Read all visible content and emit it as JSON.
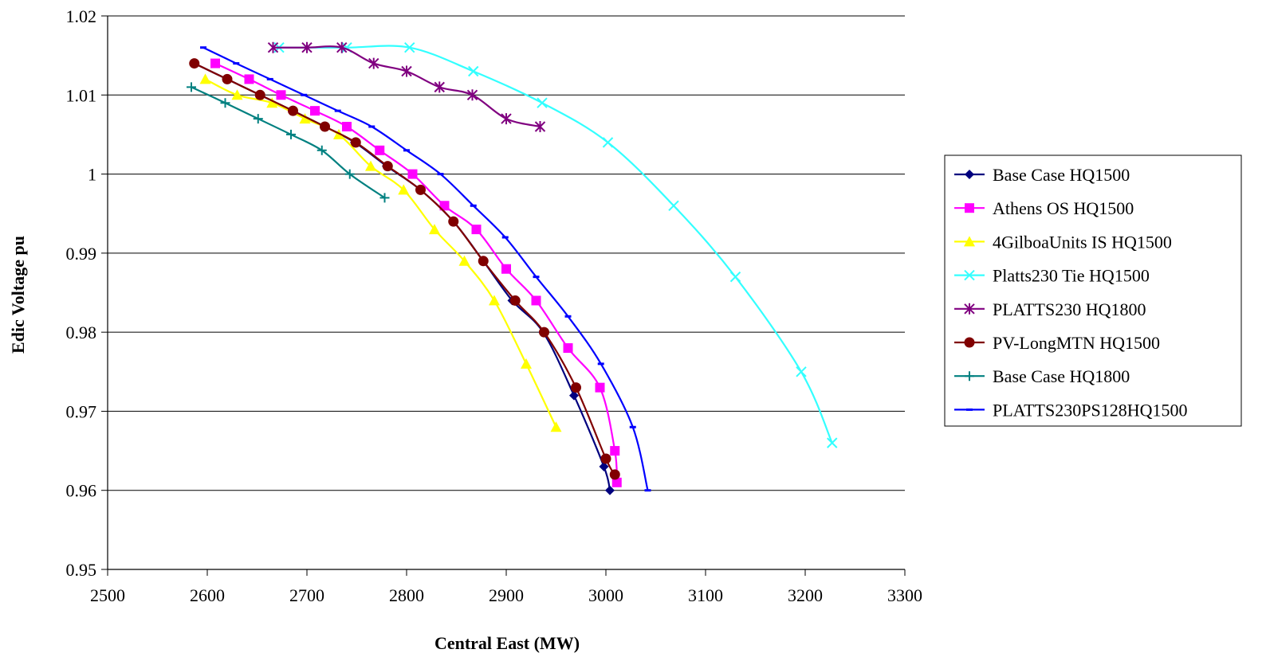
{
  "chart_data": {
    "type": "line",
    "title": "",
    "xlabel": "Central East (MW)",
    "ylabel": "Edic Voltage pu",
    "xlim": [
      2500,
      3300
    ],
    "ylim": [
      0.95,
      1.02
    ],
    "xticks": [
      "2500",
      "2600",
      "2700",
      "2800",
      "2900",
      "3000",
      "3100",
      "3200",
      "3300"
    ],
    "yticks": [
      "0.95",
      "0.96",
      "0.97",
      "0.98",
      "0.99",
      "1",
      "1.01",
      "1.02"
    ],
    "grid": "horizontal",
    "legend_position": "right",
    "series": [
      {
        "name": "Base Case HQ1500",
        "color": "#00007f",
        "marker": "diamond",
        "x": [
          2587,
          2620,
          2653,
          2686,
          2718,
          2748,
          2780,
          2814,
          2847,
          2877,
          2906,
          2937,
          2968,
          2998,
          3004
        ],
        "y": [
          1.014,
          1.012,
          1.01,
          1.008,
          1.006,
          1.004,
          1.001,
          0.998,
          0.994,
          0.989,
          0.984,
          0.98,
          0.972,
          0.963,
          0.96
        ]
      },
      {
        "name": "Athens OS HQ1500",
        "color": "#ff00ff",
        "marker": "square",
        "x": [
          2608,
          2642,
          2674,
          2708,
          2740,
          2773,
          2806,
          2838,
          2870,
          2900,
          2930,
          2962,
          2994,
          3009,
          3011
        ],
        "y": [
          1.014,
          1.012,
          1.01,
          1.008,
          1.006,
          1.003,
          1.0,
          0.996,
          0.993,
          0.988,
          0.984,
          0.978,
          0.973,
          0.965,
          0.961
        ]
      },
      {
        "name": "4GilboaUnits IS HQ1500",
        "color": "#ffff00",
        "marker": "triangle",
        "x": [
          2598,
          2630,
          2665,
          2698,
          2732,
          2764,
          2797,
          2828,
          2858,
          2888,
          2920,
          2950
        ],
        "y": [
          1.012,
          1.01,
          1.009,
          1.007,
          1.005,
          1.001,
          0.998,
          0.993,
          0.989,
          0.984,
          0.976,
          0.968
        ]
      },
      {
        "name": "Platts230 Tie HQ1500",
        "color": "#33ffff",
        "marker": "x",
        "x": [
          2672,
          2740,
          2803,
          2867,
          2936,
          3002,
          3068,
          3130,
          3196,
          3227
        ],
        "y": [
          1.016,
          1.016,
          1.016,
          1.013,
          1.009,
          1.004,
          0.996,
          0.987,
          0.975,
          0.966
        ]
      },
      {
        "name": "PLATTS230 HQ1800",
        "color": "#800080",
        "marker": "asterisk",
        "x": [
          2666,
          2700,
          2735,
          2767,
          2800,
          2833,
          2866,
          2900,
          2934
        ],
        "y": [
          1.016,
          1.016,
          1.016,
          1.014,
          1.013,
          1.011,
          1.01,
          1.007,
          1.006
        ]
      },
      {
        "name": "PV-LongMTN HQ1500",
        "color": "#800000",
        "marker": "circle",
        "x": [
          2587,
          2620,
          2653,
          2686,
          2718,
          2749,
          2781,
          2814,
          2847,
          2877,
          2909,
          2938,
          2970,
          3000,
          3009
        ],
        "y": [
          1.014,
          1.012,
          1.01,
          1.008,
          1.006,
          1.004,
          1.001,
          0.998,
          0.994,
          0.989,
          0.984,
          0.98,
          0.973,
          0.964,
          0.962
        ]
      },
      {
        "name": "Base Case HQ1800",
        "color": "#008080",
        "marker": "plus",
        "x": [
          2584,
          2618,
          2651,
          2684,
          2715,
          2743,
          2778
        ],
        "y": [
          1.011,
          1.009,
          1.007,
          1.005,
          1.003,
          1.0,
          0.997
        ]
      },
      {
        "name": "PLATTS230PS128HQ1500",
        "color": "#0000ff",
        "marker": "dash",
        "x": [
          2596,
          2629,
          2663,
          2697,
          2731,
          2765,
          2800,
          2834,
          2867,
          2899,
          2930,
          2962,
          2995,
          3027,
          3042
        ],
        "y": [
          1.016,
          1.014,
          1.012,
          1.01,
          1.008,
          1.006,
          1.003,
          1.0,
          0.996,
          0.992,
          0.987,
          0.982,
          0.976,
          0.968,
          0.96
        ]
      }
    ]
  }
}
